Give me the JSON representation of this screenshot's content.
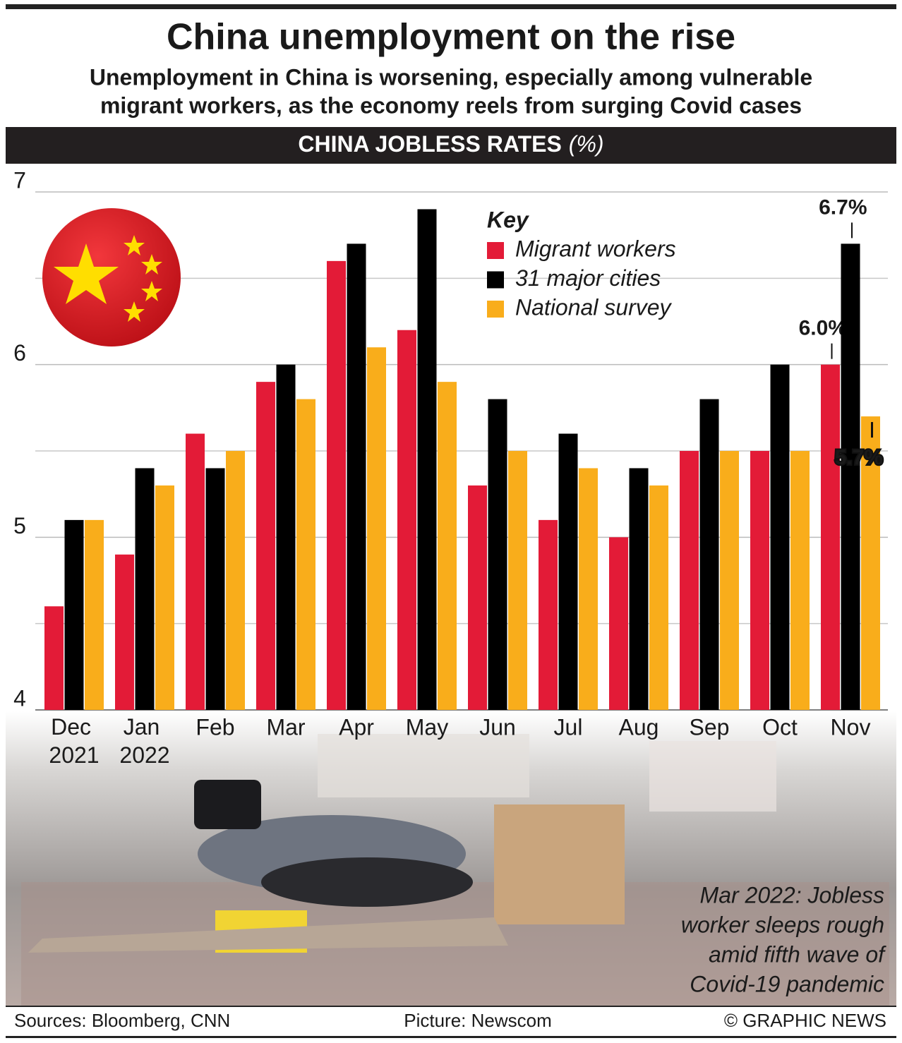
{
  "chart_data": {
    "type": "bar",
    "title": "China unemployment on the rise",
    "subtitle": [
      "Unemployment in China is worsening, especially among vulnerable",
      "migrant workers, as the economy reels from surging Covid cases"
    ],
    "banner": "CHINA JOBLESS RATES",
    "banner_unit": "(%)",
    "legend_title": "Key",
    "categories": [
      "Dec 2021",
      "Jan 2022",
      "Feb",
      "Mar",
      "Apr",
      "May",
      "Jun",
      "Jul",
      "Aug",
      "Sep",
      "Oct",
      "Nov"
    ],
    "series": [
      {
        "name": "Migrant workers",
        "color": "#e31b37",
        "values": [
          4.6,
          4.9,
          5.6,
          5.9,
          6.6,
          6.2,
          5.3,
          5.1,
          5.0,
          5.5,
          5.5,
          6.0
        ],
        "value_labels": [
          null,
          null,
          null,
          null,
          null,
          null,
          null,
          null,
          null,
          null,
          null,
          "6.0%"
        ]
      },
      {
        "name": "31 major cities",
        "color": "#000000",
        "values": [
          5.1,
          5.4,
          5.4,
          6.0,
          6.7,
          6.9,
          5.8,
          5.6,
          5.4,
          5.8,
          6.0,
          6.7
        ],
        "value_labels": [
          null,
          null,
          null,
          null,
          null,
          null,
          null,
          null,
          null,
          null,
          null,
          "6.7%"
        ]
      },
      {
        "name": "National survey",
        "color": "#f9ad1b",
        "values": [
          5.1,
          5.3,
          5.5,
          5.8,
          6.1,
          5.9,
          5.5,
          5.4,
          5.3,
          5.5,
          5.5,
          5.7
        ],
        "value_labels": [
          null,
          null,
          null,
          null,
          null,
          null,
          null,
          null,
          null,
          null,
          null,
          "5.7%"
        ]
      }
    ],
    "ylim": [
      4,
      7
    ],
    "yticks": [
      4,
      5,
      6,
      7
    ],
    "minor_gridlines": [
      4.5,
      5.5,
      6.5
    ],
    "grid": true,
    "caption": [
      "Mar 2022: Jobless",
      "worker sleeps rough",
      "amid fifth wave of",
      "Covid-19 pandemic"
    ],
    "sources": "Sources: Bloomberg, CNN",
    "picture_credit": "Picture: Newscom",
    "copyright": "© GRAPHIC NEWS"
  }
}
